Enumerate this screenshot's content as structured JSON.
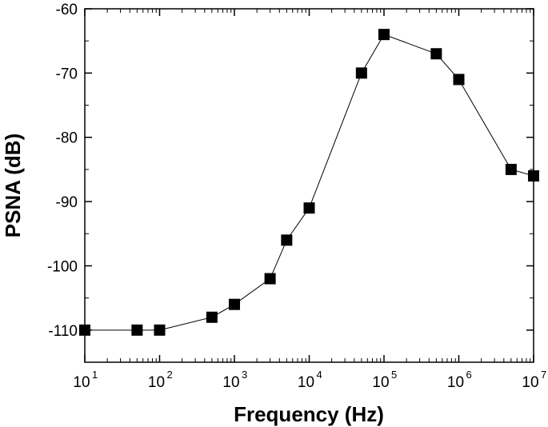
{
  "chart_data": {
    "type": "line",
    "xlabel": "Frequency (Hz)",
    "ylabel": "PSNA (dB)",
    "x_scale": "log",
    "xlim": [
      10,
      10000000
    ],
    "ylim": [
      -115,
      -60
    ],
    "x_ticks": [
      {
        "base": "10",
        "exp": "1",
        "value": 10
      },
      {
        "base": "10",
        "exp": "2",
        "value": 100
      },
      {
        "base": "10",
        "exp": "3",
        "value": 1000
      },
      {
        "base": "10",
        "exp": "4",
        "value": 10000
      },
      {
        "base": "10",
        "exp": "5",
        "value": 100000
      },
      {
        "base": "10",
        "exp": "6",
        "value": 1000000
      },
      {
        "base": "10",
        "exp": "7",
        "value": 10000000
      }
    ],
    "y_ticks": [
      "-60",
      "-70",
      "-80",
      "-90",
      "-100",
      "-110"
    ],
    "y_tick_values": [
      -60,
      -70,
      -80,
      -90,
      -100,
      -110
    ],
    "grid": false,
    "marker": "square",
    "color": "#000000",
    "series": [
      {
        "x": [
          10,
          50,
          100,
          500,
          1000,
          3000,
          5000,
          10000,
          50000,
          100000,
          500000,
          1000000,
          5000000,
          10000000
        ],
        "y": [
          -110,
          -110,
          -110,
          -108,
          -106,
          -102,
          -96,
          -91,
          -70,
          -64,
          -67,
          -71,
          -85,
          -86
        ]
      }
    ]
  }
}
